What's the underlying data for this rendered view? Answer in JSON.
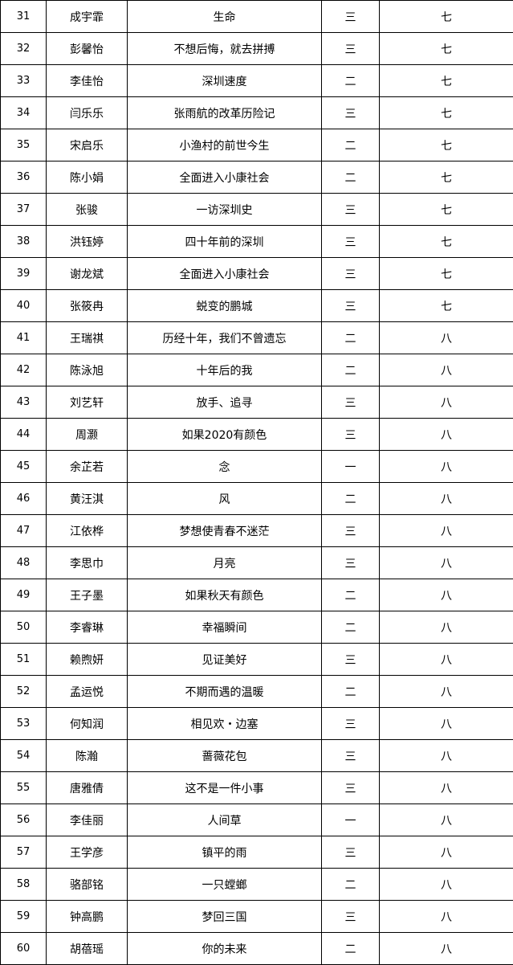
{
  "rows": [
    [
      "31",
      "成宇霏",
      "生命",
      "三",
      "七"
    ],
    [
      "32",
      "彭馨怡",
      "不想后悔，就去拼搏",
      "三",
      "七"
    ],
    [
      "33",
      "李佳怡",
      "深圳速度",
      "二",
      "七"
    ],
    [
      "34",
      "闫乐乐",
      "张雨航的改革历险记",
      "三",
      "七"
    ],
    [
      "35",
      "宋启乐",
      "小渔村的前世今生",
      "二",
      "七"
    ],
    [
      "36",
      "陈小娟",
      "全面进入小康社会",
      "二",
      "七"
    ],
    [
      "37",
      "张骏",
      "一访深圳史",
      "三",
      "七"
    ],
    [
      "38",
      "洪钰婷",
      "四十年前的深圳",
      "三",
      "七"
    ],
    [
      "39",
      "谢龙斌",
      "全面进入小康社会",
      "三",
      "七"
    ],
    [
      "40",
      "张筱冉",
      "蜕变的鹏城",
      "三",
      "七"
    ],
    [
      "41",
      "王瑞祺",
      "历经十年，我们不曾遗忘",
      "二",
      "八"
    ],
    [
      "42",
      "陈泳旭",
      "十年后的我",
      "二",
      "八"
    ],
    [
      "43",
      "刘艺轩",
      "放手、追寻",
      "三",
      "八"
    ],
    [
      "44",
      "周灏",
      "如果2020有颜色",
      "三",
      "八"
    ],
    [
      "45",
      "余芷若",
      "念",
      "一",
      "八"
    ],
    [
      "46",
      "黄汪淇",
      "风",
      "二",
      "八"
    ],
    [
      "47",
      "江依桦",
      "梦想使青春不迷茫",
      "三",
      "八"
    ],
    [
      "48",
      "李思巾",
      "月亮",
      "三",
      "八"
    ],
    [
      "49",
      "王子墨",
      "如果秋天有颜色",
      "二",
      "八"
    ],
    [
      "50",
      "李睿琳",
      "幸福瞬间",
      "二",
      "八"
    ],
    [
      "51",
      "赖煦妍",
      "见证美好",
      "三",
      "八"
    ],
    [
      "52",
      "孟运悦",
      "不期而遇的温暖",
      "二",
      "八"
    ],
    [
      "53",
      "何知润",
      "相见欢・边塞",
      "三",
      "八"
    ],
    [
      "54",
      "陈瀚",
      "蔷薇花包",
      "三",
      "八"
    ],
    [
      "55",
      "唐雅倩",
      "这不是一件小事",
      "三",
      "八"
    ],
    [
      "56",
      "李佳丽",
      "人间草",
      "一",
      "八"
    ],
    [
      "57",
      "王学彦",
      "镇平的雨",
      "三",
      "八"
    ],
    [
      "58",
      "骆部铭",
      "一只螳螂",
      "二",
      "八"
    ],
    [
      "59",
      "钟高鹏",
      "梦回三国",
      "三",
      "八"
    ],
    [
      "60",
      "胡蓓瑶",
      "你的未来",
      "二",
      "八"
    ]
  ]
}
